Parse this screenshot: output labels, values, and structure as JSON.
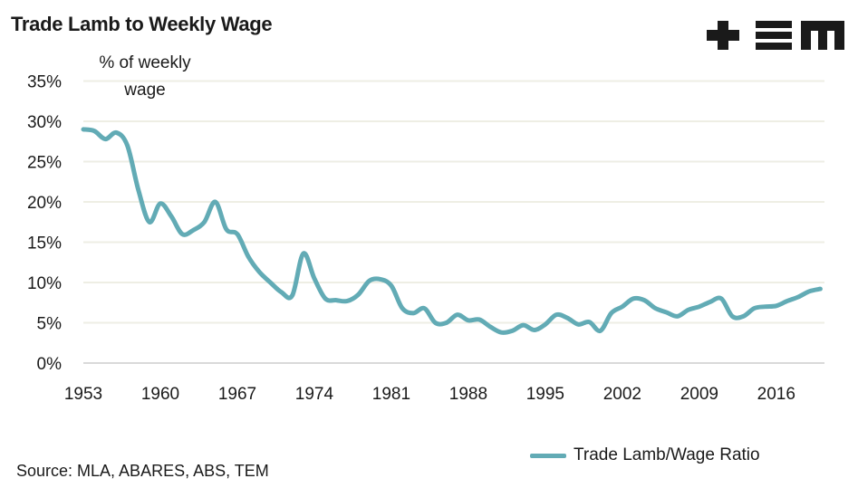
{
  "title": "Trade Lamb to Weekly Wage",
  "logo_text": "+EM",
  "source": "Source: MLA, ABARES, ABS, TEM",
  "colors": {
    "series": "#62abb5",
    "grid": "#eeeee4",
    "axis": "#d9d9d9"
  },
  "chart_data": {
    "type": "line",
    "title": "Trade Lamb to Weekly Wage",
    "xlabel": "",
    "ylabel": "% of weekly wage",
    "ylabel_lines": [
      "% of weekly",
      "wage"
    ],
    "ylim": [
      0,
      35
    ],
    "xlim": [
      1953,
      2020
    ],
    "grid": true,
    "legend_position": "bottom-right",
    "yticks": [
      "0%",
      "5%",
      "10%",
      "15%",
      "20%",
      "25%",
      "30%",
      "35%"
    ],
    "xticks": [
      "1953",
      "1960",
      "1967",
      "1974",
      "1981",
      "1988",
      "1995",
      "2002",
      "2009",
      "2016"
    ],
    "series": [
      {
        "name": "Trade Lamb/Wage Ratio",
        "x": [
          1953,
          1954,
          1955,
          1956,
          1957,
          1958,
          1959,
          1960,
          1961,
          1962,
          1963,
          1964,
          1965,
          1966,
          1967,
          1968,
          1969,
          1970,
          1971,
          1972,
          1973,
          1974,
          1975,
          1976,
          1977,
          1978,
          1979,
          1980,
          1981,
          1982,
          1983,
          1984,
          1985,
          1986,
          1987,
          1988,
          1989,
          1990,
          1991,
          1992,
          1993,
          1994,
          1995,
          1996,
          1997,
          1998,
          1999,
          2000,
          2001,
          2002,
          2003,
          2004,
          2005,
          2006,
          2007,
          2008,
          2009,
          2010,
          2011,
          2012,
          2013,
          2014,
          2015,
          2016,
          2017,
          2018,
          2019,
          2020
        ],
        "values": [
          29.0,
          28.8,
          27.8,
          28.6,
          27.0,
          21.5,
          17.5,
          19.8,
          18.2,
          16.0,
          16.5,
          17.5,
          20.0,
          16.6,
          16.0,
          13.2,
          11.3,
          10.0,
          8.8,
          8.4,
          13.6,
          10.5,
          8.0,
          7.8,
          7.7,
          8.5,
          10.2,
          10.4,
          9.6,
          6.8,
          6.2,
          6.8,
          5.0,
          5.0,
          6.0,
          5.3,
          5.4,
          4.5,
          3.8,
          4.0,
          4.7,
          4.1,
          4.8,
          6.0,
          5.6,
          4.8,
          5.1,
          4.0,
          6.2,
          7.0,
          8.0,
          7.8,
          6.8,
          6.3,
          5.8,
          6.6,
          7.0,
          7.6,
          8.0,
          5.8,
          5.8,
          6.8,
          7.0,
          7.1,
          7.7,
          8.2,
          8.9,
          9.2
        ]
      }
    ]
  }
}
